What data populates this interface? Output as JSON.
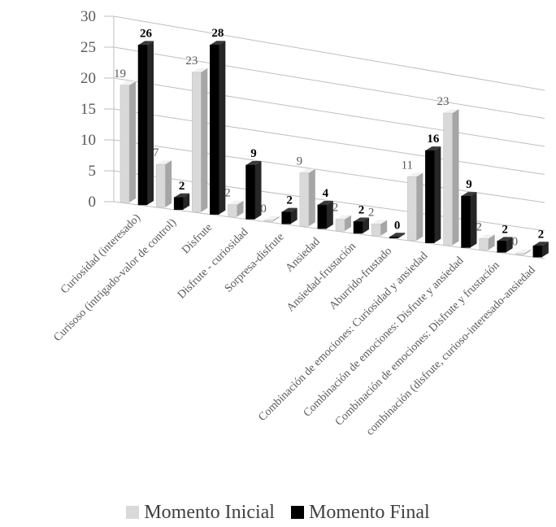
{
  "chart_data": {
    "type": "bar",
    "style": "3d-clustered-column",
    "categories": [
      "Curiosidad (interesado)",
      "Curisoso (intrigado-valor de control)",
      "Disfrute",
      "Disfrute - curiosidad",
      "Sorpresa-disfrute",
      "Ansiedad",
      "Ansiedad-frustación",
      "Aburrido-frustado",
      "Combinación de emociones: Curiosidad y ansiedad",
      "Combinación de emociones: Disfrute y ansiedad",
      "Combinación de emociones: Disfrute y frustación",
      "combinación (disfrute, curioso-interesado-ansiedad"
    ],
    "series": [
      {
        "name": "Momento Inicial",
        "color": "#d9d9d9",
        "values": [
          19,
          7,
          23,
          2,
          0,
          9,
          2,
          2,
          11,
          23,
          2,
          0
        ]
      },
      {
        "name": "Momento Final",
        "color": "#000000",
        "values": [
          26,
          2,
          28,
          9,
          2,
          4,
          2,
          0,
          16,
          9,
          2,
          2
        ]
      }
    ],
    "y_ticks": [
      "0",
      "5",
      "10",
      "15",
      "20",
      "25",
      "30"
    ],
    "ylim": [
      0,
      30
    ],
    "grid": true,
    "legend_position": "bottom",
    "title": "",
    "xlabel": "",
    "ylabel": ""
  },
  "legend": {
    "items": [
      {
        "label": "Momento Inicial",
        "color": "#d9d9d9"
      },
      {
        "label": "Momento Final",
        "color": "#000000"
      }
    ]
  }
}
